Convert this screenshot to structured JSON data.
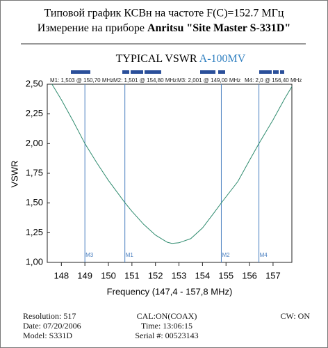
{
  "header": {
    "line1": "Типовой график КСВн на частоте F(C)=152.7 МГц",
    "line2_plain": "Измерение на приборе",
    "line2_bold": "Anritsu \"Site Master S-331D\""
  },
  "chart_data": {
    "type": "line",
    "title": "TYPICAL VSWR",
    "title_model": "A-100MV",
    "x_label": "Frequency (147,4 - 157,8 MHz)",
    "y_label": "VSWR",
    "xlim": [
      147.4,
      157.8
    ],
    "xticks": [
      148,
      149,
      150,
      151,
      152,
      153,
      154,
      155,
      156,
      157
    ],
    "ylim": [
      1,
      2.5
    ],
    "yticks": [
      {
        "value": 1,
        "label": "1,00"
      },
      {
        "value": 1.25,
        "label": "1,25"
      },
      {
        "value": 1.5,
        "label": "1,50"
      },
      {
        "value": 1.75,
        "label": "1,75"
      },
      {
        "value": 2,
        "label": "2,00"
      },
      {
        "value": 2.25,
        "label": "2,25"
      },
      {
        "value": 2.5,
        "label": "2,50"
      }
    ],
    "series": [
      {
        "name": "VSWR",
        "color": "#2e8b6e",
        "x": [
          147.6,
          148,
          148.5,
          149,
          149.5,
          150,
          150.7,
          151,
          151.5,
          152,
          152.5,
          152.7,
          153,
          153.5,
          154,
          154.5,
          154.8,
          155.5,
          156,
          156.4,
          157,
          157.5,
          157.8
        ],
        "values": [
          2.5,
          2.37,
          2.19,
          2.0,
          1.84,
          1.69,
          1.503,
          1.43,
          1.32,
          1.23,
          1.17,
          1.16,
          1.165,
          1.2,
          1.29,
          1.42,
          1.501,
          1.68,
          1.86,
          2.0,
          2.2,
          2.38,
          2.48
        ]
      }
    ],
    "markers": [
      {
        "name": "M1",
        "label": "M1: 1,503 @ 150,70 MHz",
        "x": 150.7
      },
      {
        "name": "M2",
        "label": "M2: 1,501 @ 154,80 MHz",
        "x": 154.8
      },
      {
        "name": "M3",
        "label": "M3: 2,001 @ 149,00 MHz",
        "x": 149.0
      },
      {
        "name": "M4",
        "label": "M4: 2,0 @ 156,40 MHz",
        "x": 156.4
      }
    ],
    "marker_color": "#4a7fc0"
  },
  "footer": {
    "resolution": "Resolution:  517",
    "date": "Date: 07/20/2006",
    "model": "Model: S331D",
    "cal": "CAL:ON(COAX)",
    "time": "Time: 13:06:15",
    "serial": "Serial #: 00523143",
    "cw": "CW: ON"
  }
}
